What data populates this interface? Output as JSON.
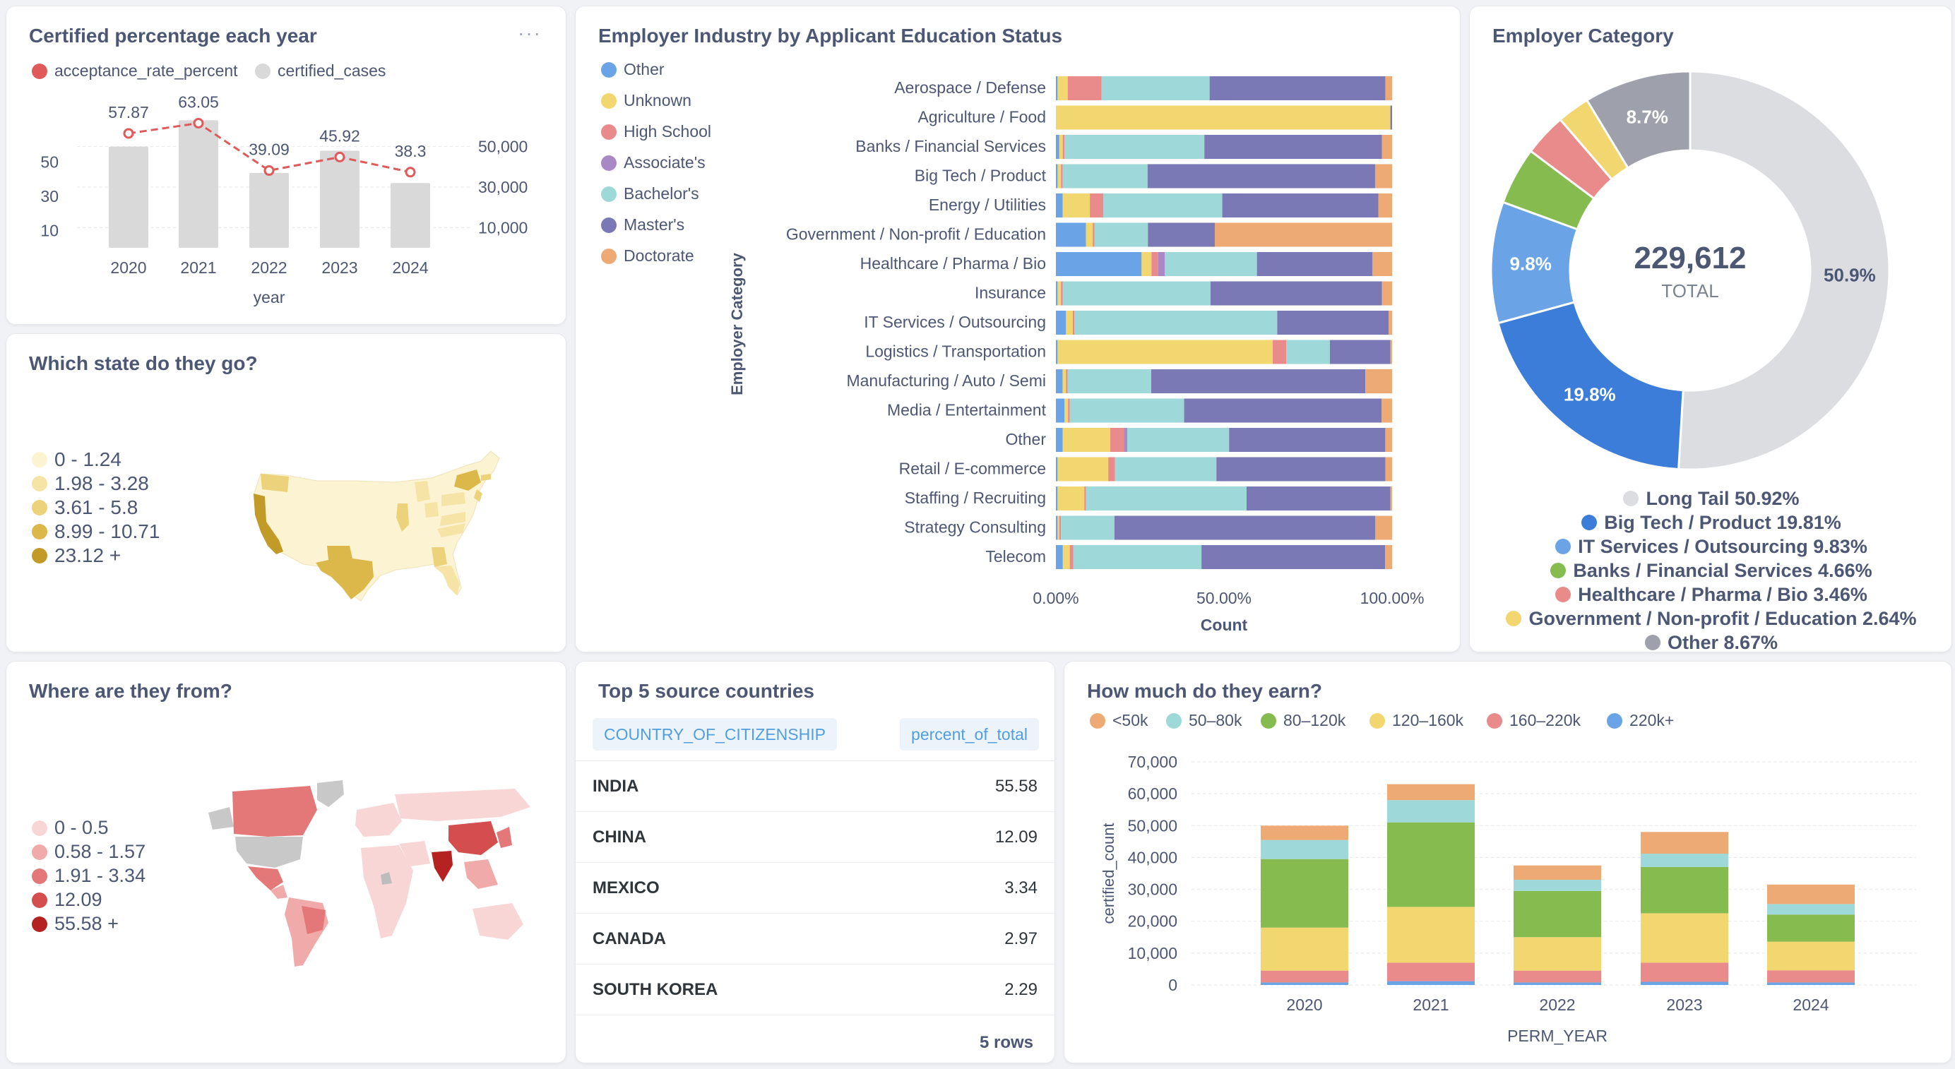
{
  "colors": {
    "accent": "#509ee3",
    "series": {
      "Other": "#6aa4e6",
      "Unknown": "#f2d66f",
      "High School": "#e98b8b",
      "Associate's": "#a989c5",
      "Bachelor's": "#9fd8d8",
      "Master's": "#7a79b5",
      "Doctorate": "#eeaa75"
    }
  },
  "card1": {
    "title": "Certified percentage each year",
    "menu_icon": "more-dots-icon",
    "legend": [
      {
        "label": "acceptance_rate_percent",
        "color": "#e05a5a"
      },
      {
        "label": "certified_cases",
        "color": "#d9d9d9"
      }
    ],
    "left_ticks": [
      "50",
      "30",
      "10"
    ],
    "right_ticks": [
      "50,000",
      "30,000",
      "10,000"
    ],
    "xlabel": "year"
  },
  "card2": {
    "title": "Which state do they go?",
    "legend": [
      {
        "label": "0 - 1.24",
        "color": "#fcf3d3"
      },
      {
        "label": "1.98 - 3.28",
        "color": "#f6e3a6"
      },
      {
        "label": "3.61 - 5.8",
        "color": "#ecd27a"
      },
      {
        "label": "8.99 - 10.71",
        "color": "#dcb84a"
      },
      {
        "label": "23.12 +",
        "color": "#c29a28"
      }
    ]
  },
  "card3": {
    "title": "Employer Industry by Applicant Education Status",
    "legend": [
      "Other",
      "Unknown",
      "High School",
      "Associate's",
      "Bachelor's",
      "Master's",
      "Doctorate"
    ],
    "ylabel": "Employer Category",
    "xlabel": "Count",
    "xticks": [
      "0.00%",
      "50.00%",
      "100.00%"
    ]
  },
  "card4": {
    "title": "Employer Category",
    "total": "229,612",
    "total_label": "TOTAL",
    "slice_labels": [
      "50.9%",
      "19.8%",
      "9.8%",
      "8.7%"
    ],
    "legend": [
      {
        "label": "Long Tail 50.92%",
        "color": "#dcdde0"
      },
      {
        "label": "Big Tech / Product 19.81%",
        "color": "#3b7dd8"
      },
      {
        "label": "IT Services / Outsourcing 9.83%",
        "color": "#6aa4e6"
      },
      {
        "label": "Banks / Financial Services 4.66%",
        "color": "#86bb4f"
      },
      {
        "label": "Healthcare / Pharma / Bio 3.46%",
        "color": "#e98b8b"
      },
      {
        "label": "Government / Non-profit / Education 2.64%",
        "color": "#f2d66f"
      },
      {
        "label": "Other 8.67%",
        "color": "#9ea1ab"
      }
    ]
  },
  "card5": {
    "title": "Where are they from?",
    "legend": [
      {
        "label": "0 - 0.5",
        "color": "#f9d6d6"
      },
      {
        "label": "0.58 - 1.57",
        "color": "#f0aaaa"
      },
      {
        "label": "1.91 - 3.34",
        "color": "#e47878"
      },
      {
        "label": "12.09",
        "color": "#d44e4e"
      },
      {
        "label": "55.58 +",
        "color": "#b52222"
      }
    ]
  },
  "card6": {
    "title": "Top 5 source countries",
    "col1": "COUNTRY_OF_CITIZENSHIP",
    "col2": "percent_of_total",
    "rows": [
      {
        "country": "INDIA",
        "value": "55.58"
      },
      {
        "country": "CHINA",
        "value": "12.09"
      },
      {
        "country": "MEXICO",
        "value": "3.34"
      },
      {
        "country": "CANADA",
        "value": "2.97"
      },
      {
        "country": "SOUTH KOREA",
        "value": "2.29"
      }
    ],
    "footer": "5 rows"
  },
  "card7": {
    "title": "How much do they earn?",
    "legend": [
      {
        "label": "<50k",
        "color": "#eeaa75"
      },
      {
        "label": "50–80k",
        "color": "#9fd8d8"
      },
      {
        "label": "80–120k",
        "color": "#86bb4f"
      },
      {
        "label": "120–160k",
        "color": "#f2d66f"
      },
      {
        "label": "160–220k",
        "color": "#e98b8b"
      },
      {
        "label": "220k+",
        "color": "#6aa4e6"
      }
    ],
    "ylabel": "certified_count",
    "xlabel": "PERM_YEAR"
  },
  "chart_data": [
    {
      "type": "bar+line",
      "title": "Certified percentage each year",
      "categories": [
        "2020",
        "2021",
        "2022",
        "2023",
        "2024"
      ],
      "series": [
        {
          "name": "certified_cases",
          "type": "bar",
          "axis": "right",
          "values": [
            50000,
            63000,
            37000,
            48000,
            32000
          ]
        },
        {
          "name": "acceptance_rate_percent",
          "type": "line",
          "axis": "left",
          "values": [
            57.87,
            63.05,
            39.09,
            45.92,
            38.3
          ]
        }
      ],
      "labels": [
        "57.87",
        "63.05",
        "39.09",
        "45.92",
        "38.3"
      ],
      "ylim_left": [
        0,
        70
      ],
      "ylim_right": [
        0,
        70000
      ],
      "xlabel": "year"
    },
    {
      "type": "bar",
      "orientation": "horizontal-stacked-100",
      "title": "Employer Industry by Applicant Education Status",
      "categories": [
        "Aerospace / Defense",
        "Agriculture / Food",
        "Banks / Financial Services",
        "Big Tech / Product",
        "Energy / Utilities",
        "Government / Non-profit / Education",
        "Healthcare / Pharma / Bio",
        "Insurance",
        "IT Services / Outsourcing",
        "Logistics / Transportation",
        "Manufacturing / Auto / Semi",
        "Media / Entertainment",
        "Other",
        "Retail / E-commerce",
        "Staffing / Recruiting",
        "Strategy Consulting",
        "Telecom"
      ],
      "series": [
        {
          "name": "Other",
          "values": [
            0.5,
            0,
            1,
            0.5,
            2,
            9,
            26,
            0.5,
            3,
            0.5,
            2,
            2.5,
            2,
            0.5,
            0.5,
            0.5,
            2
          ]
        },
        {
          "name": "Unknown",
          "values": [
            3,
            99,
            1,
            1,
            8,
            2,
            3,
            1,
            2,
            64,
            1,
            1,
            14,
            15,
            8,
            0.5,
            2
          ]
        },
        {
          "name": "High School",
          "values": [
            10,
            0,
            0.5,
            0.5,
            4,
            0.5,
            2,
            0.5,
            0.5,
            4,
            0.5,
            0.5,
            4,
            2,
            0.5,
            0.5,
            1
          ]
        },
        {
          "name": "Associate's",
          "values": [
            0,
            0,
            0,
            0,
            0,
            0,
            2,
            0,
            0,
            0,
            0,
            0,
            1,
            0,
            0,
            0,
            0
          ]
        },
        {
          "name": "Bachelor's",
          "values": [
            32,
            0,
            41,
            25,
            35,
            16,
            28,
            44,
            60,
            13,
            25,
            33,
            30,
            30,
            48,
            16,
            37
          ]
        },
        {
          "name": "Master's",
          "values": [
            52,
            0.5,
            52,
            67,
            46,
            20,
            35,
            51,
            33,
            18,
            64,
            57,
            46,
            50,
            43,
            78,
            53
          ]
        },
        {
          "name": "Doctorate",
          "values": [
            2,
            0,
            3,
            5,
            4,
            53,
            6,
            3,
            1,
            0.5,
            8,
            3,
            2,
            2,
            0.5,
            5,
            2
          ]
        }
      ],
      "xticks": [
        "0.00%",
        "50.00%",
        "100.00%"
      ],
      "xlabel": "Count",
      "ylabel": "Employer Category"
    },
    {
      "type": "pie",
      "variant": "donut",
      "title": "Employer Category",
      "labels": [
        "Long Tail",
        "Big Tech / Product",
        "IT Services / Outsourcing",
        "Banks / Financial Services",
        "Healthcare / Pharma / Bio",
        "Government / Non-profit / Education",
        "Other"
      ],
      "values": [
        50.92,
        19.81,
        9.83,
        4.66,
        3.46,
        2.64,
        8.67
      ],
      "total": 229612
    },
    {
      "type": "bar",
      "orientation": "vertical-stacked",
      "title": "How much do they earn?",
      "categories": [
        "2020",
        "2021",
        "2022",
        "2023",
        "2024"
      ],
      "series": [
        {
          "name": "220k+",
          "values": [
            800,
            1200,
            800,
            1000,
            800
          ]
        },
        {
          "name": "160–220k",
          "values": [
            3700,
            5800,
            3700,
            6000,
            3800
          ]
        },
        {
          "name": "120–160k",
          "values": [
            13500,
            17500,
            10500,
            15500,
            9000
          ]
        },
        {
          "name": "80–120k",
          "values": [
            21500,
            26500,
            14500,
            14500,
            8500
          ]
        },
        {
          "name": "50–80k",
          "values": [
            6000,
            7000,
            3500,
            4200,
            3300
          ]
        },
        {
          "name": "<50k",
          "values": [
            4500,
            5000,
            4500,
            6800,
            6100
          ]
        }
      ],
      "ylim": [
        0,
        70000
      ],
      "yticks": [
        "0",
        "10,000",
        "20,000",
        "30,000",
        "40,000",
        "50,000",
        "60,000",
        "70,000"
      ],
      "xlabel": "PERM_YEAR",
      "ylabel": "certified_count"
    }
  ]
}
